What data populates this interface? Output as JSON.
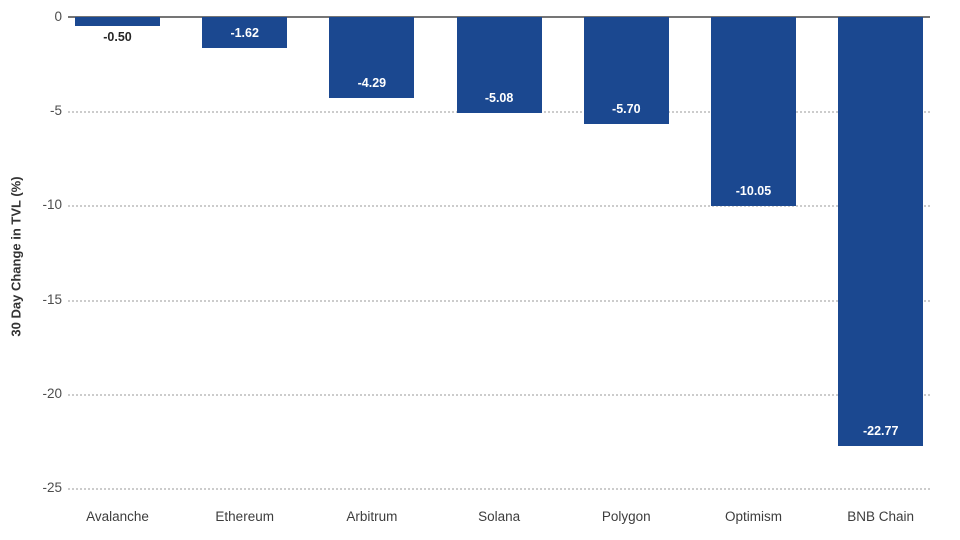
{
  "chart_data": {
    "type": "bar",
    "title": "",
    "xlabel": "",
    "ylabel": "30 Day Change in TVL (%)",
    "categories": [
      "Avalanche",
      "Ethereum",
      "Arbitrum",
      "Solana",
      "Polygon",
      "Optimism",
      "BNB Chain"
    ],
    "values": [
      -0.5,
      -1.62,
      -4.29,
      -5.08,
      -5.7,
      -10.05,
      -22.77
    ],
    "value_labels": [
      "-0.50",
      "-1.62",
      "-4.29",
      "-5.08",
      "-5.70",
      "-10.05",
      "-22.77"
    ],
    "yticks": [
      0,
      -5,
      -10,
      -15,
      -20,
      -25
    ],
    "ytick_labels": [
      "0",
      "-5",
      "-10",
      "-15",
      "-20",
      "-25"
    ],
    "ylim": [
      -25,
      0
    ],
    "grid": "horizontal-dotted",
    "legend": "none",
    "colors": {
      "bar": "#1b4890",
      "grid": "#cccccc",
      "zero_axis": "#757575",
      "tick_text": "#4d4d4d",
      "category_text": "#3d3d3d",
      "axis_title_text": "#333333",
      "value_label_inside": "#ffffff",
      "value_label_outside": "#262626",
      "background": "#ffffff"
    }
  }
}
